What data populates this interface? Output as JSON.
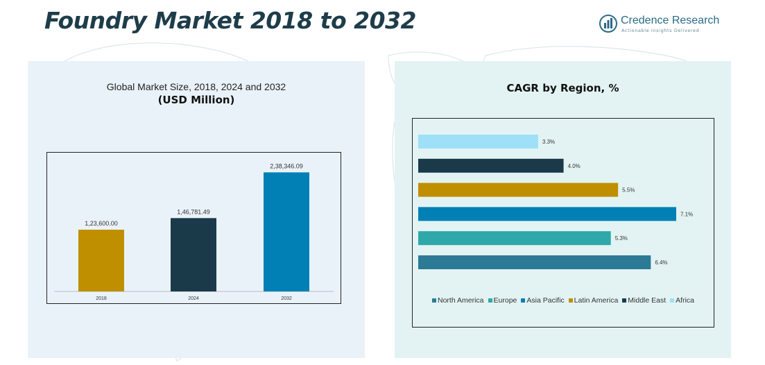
{
  "header": {
    "title": "Foundry Market 2018 to 2032",
    "brand_name": "Credence Research",
    "brand_tagline": "Actionable Insights Delivered"
  },
  "colors": {
    "title": "#1e3d4a",
    "left_panel_bg": "#eaf2f9",
    "right_panel_bg": "#e3f3f3"
  },
  "chart_data": [
    {
      "type": "bar",
      "title": "Global Market Size, 2018, 2024 and 2032",
      "subtitle": "(USD Million)",
      "categories": [
        "2018",
        "2024",
        "2032"
      ],
      "values": [
        123600.0,
        146781.49,
        238346.09
      ],
      "value_labels": [
        "1,23,600.00",
        "1,46,781.49",
        "2,38,346.09"
      ],
      "colors": [
        "#bf8f00",
        "#1a3a4a",
        "#0080b4"
      ],
      "ylim": [
        0,
        250000
      ],
      "grid": false
    },
    {
      "type": "bar",
      "orientation": "horizontal",
      "title": "CAGR by Region, %",
      "categories": [
        "Africa",
        "Middle East",
        "Latin America",
        "Asia Pacific",
        "Europe",
        "North America"
      ],
      "values": [
        3.3,
        4.0,
        5.5,
        7.1,
        5.3,
        6.4
      ],
      "value_labels": [
        "3.3%",
        "4.0%",
        "5.5%",
        "7.1%",
        "5.3%",
        "6.4%"
      ],
      "colors": [
        "#9de0f7",
        "#1a3a4a",
        "#bf8f00",
        "#0080b4",
        "#2ea8a8",
        "#2c7a96"
      ],
      "xlim": [
        0,
        8
      ],
      "legend": {
        "position": "bottom",
        "items": [
          {
            "name": "North America",
            "color": "#2c7a96"
          },
          {
            "name": "Europe",
            "color": "#2ea8a8"
          },
          {
            "name": "Asia Pacific",
            "color": "#0080b4"
          },
          {
            "name": "Latin America",
            "color": "#bf8f00"
          },
          {
            "name": "Middle East",
            "color": "#1a3a4a"
          },
          {
            "name": "Africa",
            "color": "#9de0f7"
          }
        ]
      },
      "grid": false
    }
  ]
}
